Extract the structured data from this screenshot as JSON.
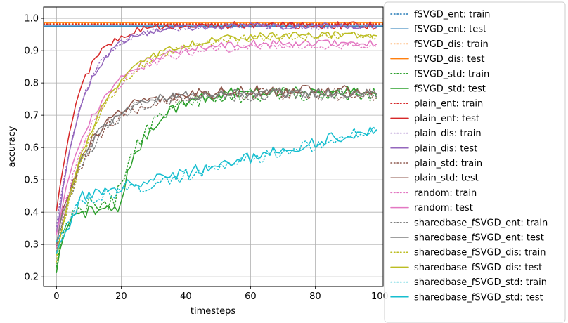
{
  "chart_data": {
    "type": "line",
    "xlabel": "timesteps",
    "ylabel": "accuracy",
    "xlim": [
      -4,
      101
    ],
    "ylim": [
      0.17,
      1.035
    ],
    "xticks": [
      0,
      20,
      40,
      60,
      80,
      100
    ],
    "yticks": [
      0.2,
      0.3,
      0.4,
      0.5,
      0.6,
      0.7,
      0.8,
      0.9,
      1.0
    ],
    "xtick_labels": [
      "0",
      "20",
      "40",
      "60",
      "80",
      "100"
    ],
    "ytick_labels": [
      "0.2",
      "0.3",
      "0.4",
      "0.5",
      "0.6",
      "0.7",
      "0.8",
      "0.9",
      "1.0"
    ],
    "grid": true,
    "legend_position": "right",
    "series": [
      {
        "name": "fSVGD_ent: train",
        "color": "#1f77b4",
        "style": "dotted",
        "kind": "flat",
        "y": 0.98
      },
      {
        "name": "fSVGD_ent: test",
        "color": "#1f77b4",
        "style": "solid",
        "kind": "flat",
        "y": 0.976
      },
      {
        "name": "fSVGD_dis: train",
        "color": "#ff7f0e",
        "style": "dotted",
        "kind": "flat",
        "y": 0.984
      },
      {
        "name": "fSVGD_dis: test",
        "color": "#ff7f0e",
        "style": "solid",
        "kind": "flat",
        "y": 0.987
      },
      {
        "name": "fSVGD_std: train",
        "color": "#2ca02c",
        "style": "dotted",
        "kind": "curve",
        "start": 0.23,
        "end": 0.765,
        "tau": 9,
        "delay": 18,
        "noise": 0.022
      },
      {
        "name": "fSVGD_std: test",
        "color": "#2ca02c",
        "style": "solid",
        "kind": "curve",
        "start": 0.21,
        "end": 0.775,
        "tau": 9,
        "delay": 19,
        "noise": 0.018
      },
      {
        "name": "plain_ent: train",
        "color": "#d62728",
        "style": "dotted",
        "kind": "flat",
        "y": 0.982
      },
      {
        "name": "plain_ent: test",
        "color": "#d62728",
        "style": "solid",
        "kind": "curve",
        "start": 0.4,
        "end": 0.978,
        "tau": 7,
        "delay": 0,
        "noise": 0.012
      },
      {
        "name": "plain_dis: train",
        "color": "#9467bd",
        "style": "dotted",
        "kind": "curve",
        "start": 0.35,
        "end": 0.975,
        "tau": 8,
        "delay": 0,
        "noise": 0.01
      },
      {
        "name": "plain_dis: test",
        "color": "#9467bd",
        "style": "solid",
        "kind": "curve",
        "start": 0.33,
        "end": 0.976,
        "tau": 8,
        "delay": 0,
        "noise": 0.01
      },
      {
        "name": "plain_std: train",
        "color": "#8c564b",
        "style": "dotted",
        "kind": "curve",
        "start": 0.28,
        "end": 0.765,
        "tau": 10,
        "delay": 0,
        "noise": 0.02
      },
      {
        "name": "plain_std: test",
        "color": "#8c564b",
        "style": "solid",
        "kind": "curve",
        "start": 0.31,
        "end": 0.775,
        "tau": 10,
        "delay": 0,
        "noise": 0.018
      },
      {
        "name": "random: train",
        "color": "#e377c2",
        "style": "dotted",
        "kind": "curve",
        "start": 0.3,
        "end": 0.915,
        "tau": 12,
        "delay": 0,
        "noise": 0.013
      },
      {
        "name": "random: test",
        "color": "#e377c2",
        "style": "solid",
        "kind": "curve",
        "start": 0.34,
        "end": 0.925,
        "tau": 12,
        "delay": 0,
        "noise": 0.012
      },
      {
        "name": "sharedbase_fSVGD_ent: train",
        "color": "#7f7f7f",
        "style": "dotted",
        "kind": "curve",
        "start": 0.29,
        "end": 0.765,
        "tau": 10,
        "delay": 0,
        "noise": 0.02
      },
      {
        "name": "sharedbase_fSVGD_ent: test",
        "color": "#7f7f7f",
        "style": "solid",
        "kind": "curve",
        "start": 0.31,
        "end": 0.77,
        "tau": 10,
        "delay": 0,
        "noise": 0.015
      },
      {
        "name": "sharedbase_fSVGD_dis: train",
        "color": "#bcbd22",
        "style": "dotted",
        "kind": "curve",
        "start": 0.25,
        "end": 0.945,
        "tau": 13,
        "delay": 0,
        "noise": 0.012
      },
      {
        "name": "sharedbase_fSVGD_dis: test",
        "color": "#bcbd22",
        "style": "solid",
        "kind": "curve",
        "start": 0.27,
        "end": 0.95,
        "tau": 13,
        "delay": 0,
        "noise": 0.011
      },
      {
        "name": "sharedbase_fSVGD_std: train",
        "color": "#17becf",
        "style": "dotted",
        "kind": "linear",
        "start": 0.31,
        "end": 0.655,
        "knee": 8,
        "knee_y": 0.44,
        "noise": 0.022
      },
      {
        "name": "sharedbase_fSVGD_std: test",
        "color": "#17becf",
        "style": "solid",
        "kind": "linear",
        "start": 0.27,
        "end": 0.66,
        "knee": 8,
        "knee_y": 0.45,
        "noise": 0.018
      }
    ]
  }
}
